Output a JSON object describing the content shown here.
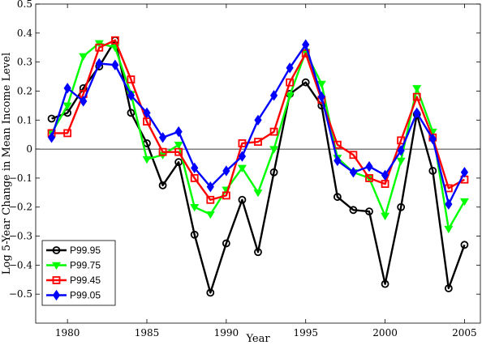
{
  "chart_data": {
    "type": "line",
    "xlabel": "Year",
    "ylabel": "Log 5-Year Change in Mean Income Level",
    "xlim": [
      1978,
      2006
    ],
    "ylim": [
      -0.6,
      0.5
    ],
    "xticks": [
      1980,
      1985,
      1990,
      1995,
      2000,
      2005
    ],
    "xtick_labels": [
      "1980",
      "1985",
      "1990",
      "1995",
      "2000",
      "2005"
    ],
    "yticks": [
      -0.5,
      -0.4,
      -0.3,
      -0.2,
      -0.1,
      0,
      0.1,
      0.2,
      0.3,
      0.4,
      0.5
    ],
    "ytick_labels": [
      "−0.5",
      "−0.4",
      "−0.3",
      "−0.2",
      "−0.1",
      "0",
      "0.1",
      "0.2",
      "0.3",
      "0.4",
      "0.5"
    ],
    "zero_line": true,
    "grid": false,
    "legend_position": "bottom-left",
    "x": [
      1979,
      1980,
      1981,
      1982,
      1983,
      1984,
      1985,
      1986,
      1987,
      1988,
      1989,
      1990,
      1991,
      1992,
      1993,
      1994,
      1995,
      1996,
      1997,
      1998,
      1999,
      2000,
      2001,
      2002,
      2003,
      2004,
      2005
    ],
    "series": [
      {
        "name": "P99.95",
        "color": "#000000",
        "marker": "circle",
        "values": [
          0.105,
          0.125,
          0.21,
          0.285,
          0.375,
          0.125,
          0.02,
          -0.125,
          -0.045,
          -0.295,
          -0.495,
          -0.325,
          -0.175,
          -0.355,
          -0.08,
          0.19,
          0.23,
          0.15,
          -0.165,
          -0.21,
          -0.215,
          -0.465,
          -0.2,
          0.12,
          -0.075,
          -0.48,
          -0.33
        ]
      },
      {
        "name": "P99.75",
        "color": "#00ff00",
        "marker": "triangle-down",
        "values": [
          0.055,
          0.15,
          0.32,
          0.365,
          0.35,
          0.19,
          -0.035,
          -0.02,
          0.015,
          -0.2,
          -0.225,
          -0.14,
          -0.065,
          -0.15,
          0.0,
          0.185,
          0.335,
          0.225,
          -0.03,
          -0.08,
          -0.1,
          -0.23,
          -0.04,
          0.21,
          0.06,
          -0.275,
          -0.18
        ]
      },
      {
        "name": "P99.45",
        "color": "#ff0000",
        "marker": "square",
        "values": [
          0.055,
          0.055,
          0.19,
          0.35,
          0.375,
          0.24,
          0.095,
          -0.01,
          -0.01,
          -0.1,
          -0.175,
          -0.16,
          0.02,
          0.025,
          0.06,
          0.23,
          0.33,
          0.17,
          0.015,
          -0.02,
          -0.1,
          -0.12,
          0.03,
          0.18,
          0.04,
          -0.135,
          -0.105
        ]
      },
      {
        "name": "P99.05",
        "color": "#0000ff",
        "marker": "diamond",
        "values": [
          0.04,
          0.21,
          0.165,
          0.295,
          0.29,
          0.185,
          0.125,
          0.04,
          0.06,
          -0.065,
          -0.13,
          -0.075,
          -0.025,
          0.1,
          0.185,
          0.28,
          0.36,
          0.18,
          -0.04,
          -0.08,
          -0.06,
          -0.09,
          -0.005,
          0.125,
          0.035,
          -0.19,
          -0.08
        ]
      }
    ]
  }
}
